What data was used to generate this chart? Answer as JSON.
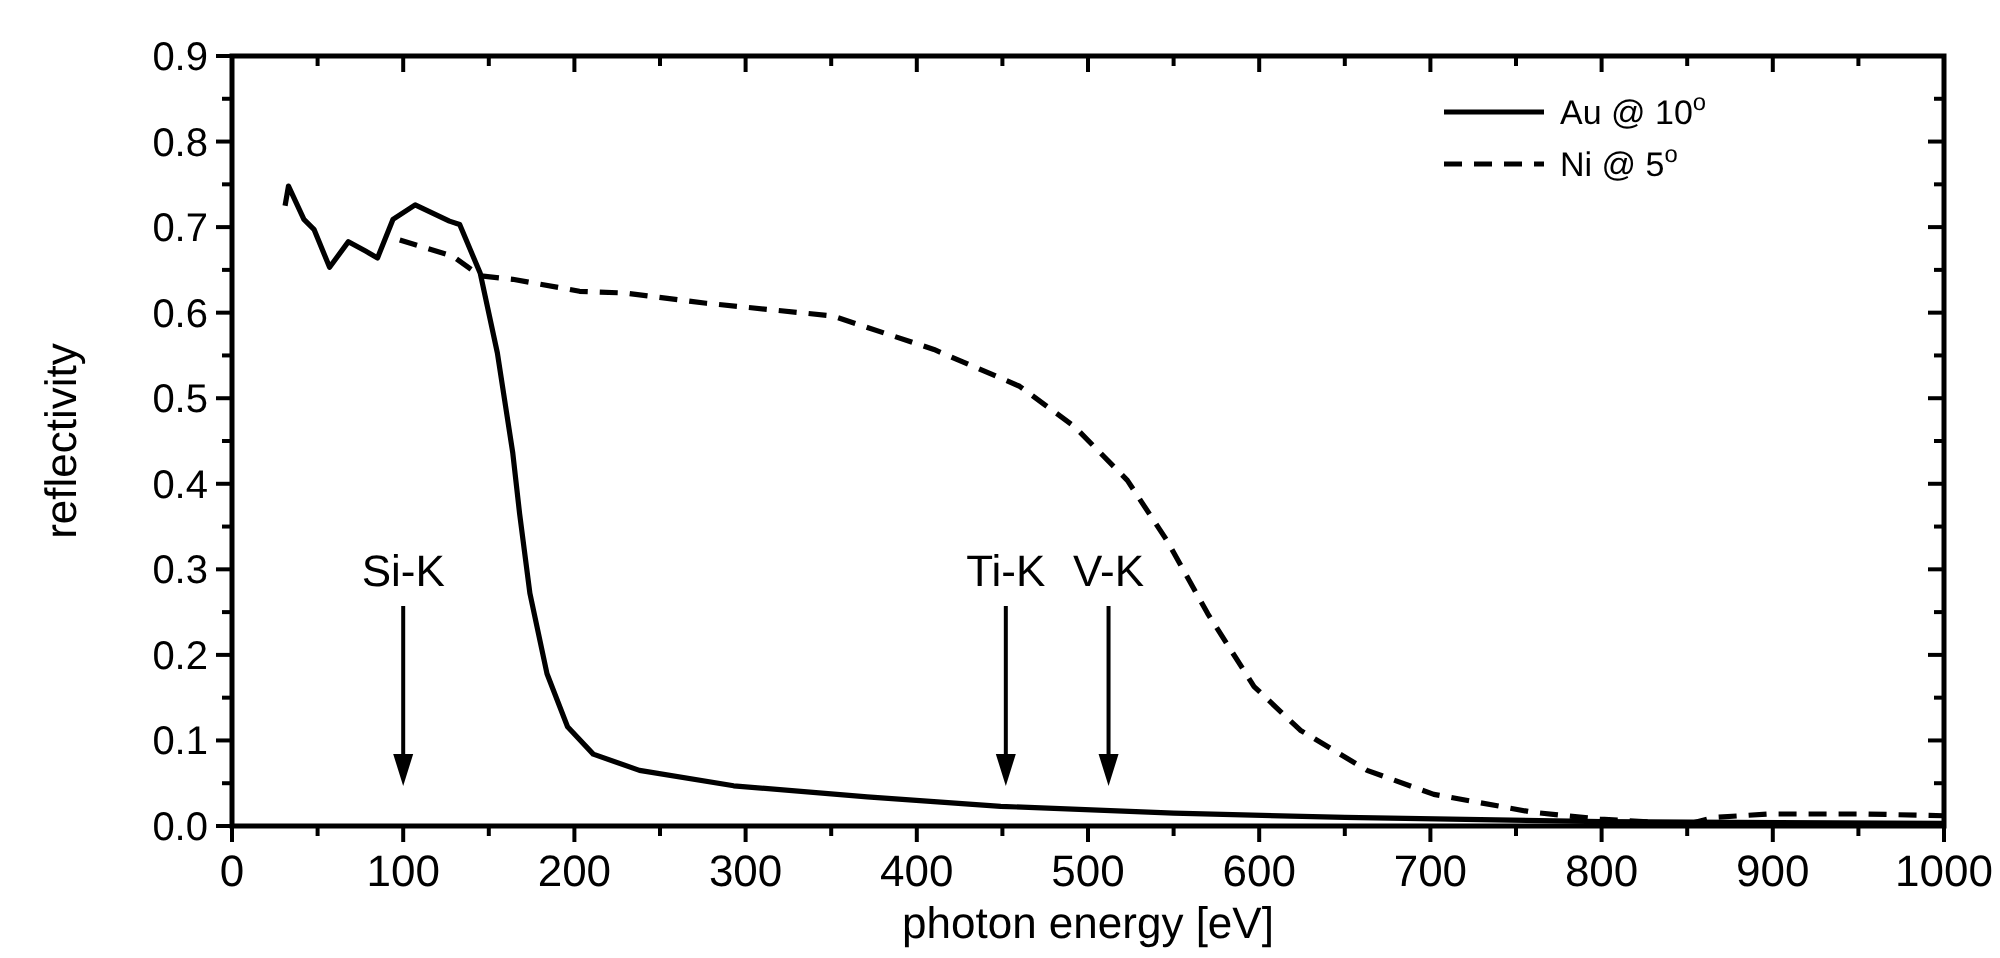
{
  "chart_data": {
    "type": "line",
    "xlabel": "photon energy [eV]",
    "ylabel": "reflectivity",
    "xlim": [
      0,
      1000
    ],
    "ylim": [
      0,
      0.9
    ],
    "xticks": [
      0,
      {
        "value": 50,
        "label": null
      },
      100,
      {
        "value": 150,
        "label": null
      },
      200,
      {
        "value": 250,
        "label": null
      },
      300,
      {
        "value": 350,
        "label": null
      },
      400,
      {
        "value": 450,
        "label": null
      },
      500,
      {
        "value": 550,
        "label": null
      },
      600,
      {
        "value": 650,
        "label": null
      },
      700,
      {
        "value": 750,
        "label": null
      },
      800,
      {
        "value": 850,
        "label": null
      },
      900,
      {
        "value": 950,
        "label": null
      },
      1000
    ],
    "yticks": [
      {
        "value": 0,
        "label": "0.0"
      },
      {
        "value": 0.05,
        "label": null
      },
      0.1,
      {
        "value": 0.15,
        "label": null
      },
      0.2,
      {
        "value": 0.25,
        "label": null
      },
      0.3,
      {
        "value": 0.35,
        "label": null
      },
      0.4,
      {
        "value": 0.45,
        "label": null
      },
      0.5,
      {
        "value": 0.55,
        "label": null
      },
      0.6,
      {
        "value": 0.65,
        "label": null
      },
      0.7,
      {
        "value": 0.75,
        "label": null
      },
      0.8,
      {
        "value": 0.85,
        "label": null
      },
      0.9
    ],
    "legend": "top right",
    "grid": false,
    "series": [
      {
        "name": "Au @ 10$^{o}$",
        "color": "#000000",
        "line_style": "solid",
        "x": [
          31,
          33,
          42,
          48,
          57,
          68,
          78,
          85,
          94,
          107,
          127,
          133,
          145,
          155,
          164,
          168,
          174,
          184,
          196,
          211,
          238,
          293,
          371,
          449,
          550,
          650,
          800,
          1000
        ],
        "values": [
          0.725,
          0.748,
          0.709,
          0.697,
          0.653,
          0.683,
          0.672,
          0.664,
          0.709,
          0.726,
          0.707,
          0.703,
          0.646,
          0.553,
          0.436,
          0.365,
          0.272,
          0.178,
          0.116,
          0.084,
          0.065,
          0.047,
          0.034,
          0.023,
          0.015,
          0.01,
          0.005,
          0.003
        ]
      },
      {
        "name": "Ni @ 5$^{o}$",
        "color": "#000000",
        "line_style": "dashed",
        "x": [
          98,
          129,
          145,
          164,
          203,
          229,
          277,
          332,
          351,
          410,
          460,
          492,
          523,
          546,
          570,
          597,
          624,
          663,
          702,
          760,
          799,
          850,
          866,
          897,
          955,
          1000
        ],
        "values": [
          0.685,
          0.666,
          0.643,
          0.639,
          0.625,
          0.623,
          0.611,
          0.6,
          0.596,
          0.557,
          0.514,
          0.467,
          0.404,
          0.334,
          0.248,
          0.163,
          0.112,
          0.065,
          0.037,
          0.016,
          0.008,
          0.002,
          0.01,
          0.014,
          0.014,
          0.012
        ]
      }
    ],
    "ref_lines": [
      {
        "axis": "x",
        "value": 100,
        "label": "Si-K"
      },
      {
        "axis": "x",
        "value": 452,
        "label": "Ti-K"
      },
      {
        "axis": "x",
        "value": 512,
        "label": "V-K"
      }
    ]
  }
}
